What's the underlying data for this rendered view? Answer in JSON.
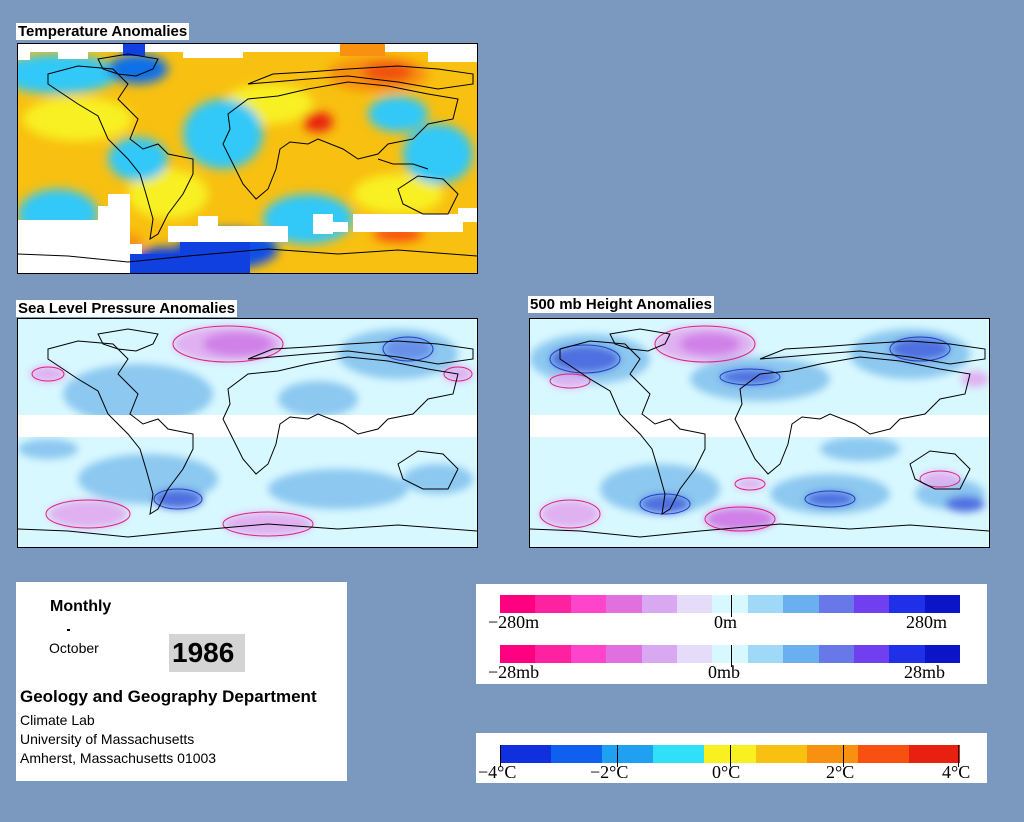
{
  "maps": {
    "temperature": {
      "title": "Temperature Anomalies"
    },
    "slp": {
      "title": "Sea Level Pressure Anomalies"
    },
    "height": {
      "title": "500 mb Height Anomalies"
    }
  },
  "info": {
    "period": "Monthly",
    "month": "October",
    "year": "1986",
    "department": "Geology and Geography Department",
    "lab": "Climate Lab",
    "university": "University of Massachusetts",
    "address": "Amherst, Massachusetts 01003"
  },
  "legends": {
    "height": {
      "min": "−280m",
      "mid": "0m",
      "max": "280m"
    },
    "pressure": {
      "min": "−28mb",
      "mid": "0mb",
      "max": "28mb"
    },
    "temperature": {
      "labels": [
        "−4°C",
        "−2°C",
        "0°C",
        "2°C",
        "4°C"
      ]
    }
  },
  "colors": {
    "background": "#7b98bf",
    "anomaly_scale": [
      "#ff0080",
      "#ff22a0",
      "#ff44cc",
      "#e070e0",
      "#d8a8f0",
      "#e4dcf8",
      "#d8f8ff",
      "#a0d8f8",
      "#6ab0f0",
      "#6878e8",
      "#7040f0",
      "#2030e8",
      "#0c14c8"
    ],
    "temperature_scale": [
      "#1030e0",
      "#1060f0",
      "#20a0f0",
      "#30e0f8",
      "#f8f020",
      "#f8c010",
      "#f89010",
      "#f85010",
      "#e82010"
    ]
  }
}
